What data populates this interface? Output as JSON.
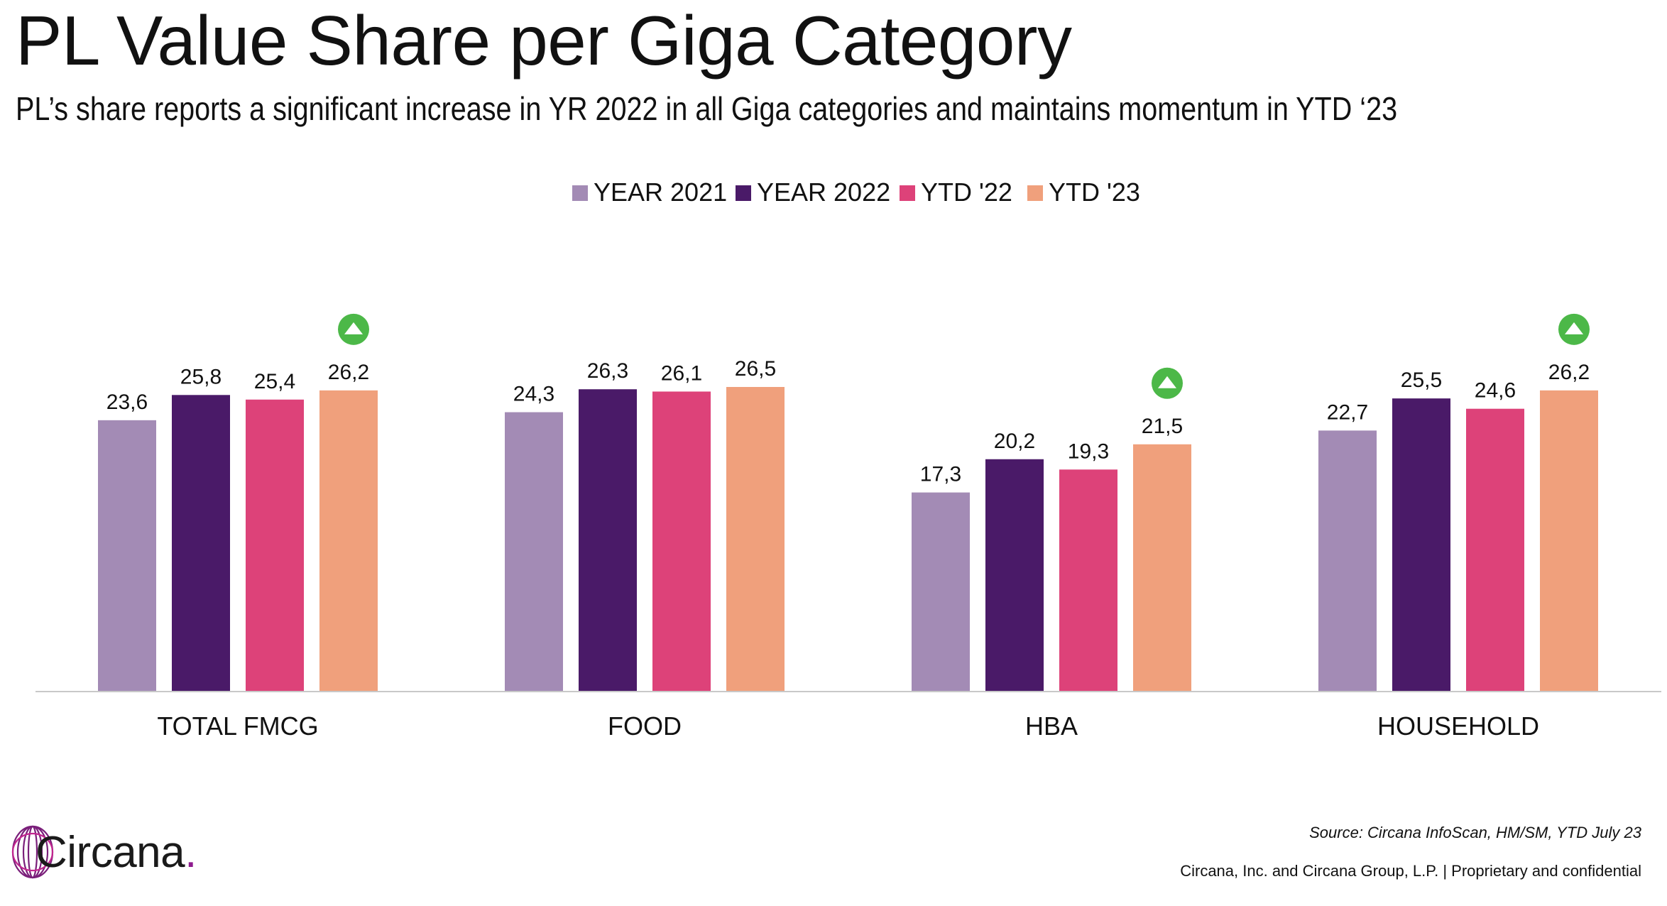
{
  "header": {
    "title": "PL Value Share per Giga Category",
    "subtitle": "PL’s share reports a significant increase in YR 2022 in all Giga categories and maintains momentum in YTD ‘23"
  },
  "chart_data": {
    "type": "bar",
    "categories": [
      "TOTAL FMCG",
      "FOOD",
      "HBA",
      "HOUSEHOLD"
    ],
    "series": [
      {
        "name": "YEAR 2021",
        "color": "#a38bb5",
        "values": [
          23.6,
          24.3,
          17.3,
          22.7
        ],
        "labels": [
          "23,6",
          "24,3",
          "17,3",
          "22,7"
        ]
      },
      {
        "name": "YEAR 2022",
        "color": "#4a1a68",
        "values": [
          25.8,
          26.3,
          20.2,
          25.5
        ],
        "labels": [
          "25,8",
          "26,3",
          "20,2",
          "25,5"
        ]
      },
      {
        "name": "YTD '22",
        "color": "#dd4279",
        "values": [
          25.4,
          26.1,
          19.3,
          24.6
        ],
        "labels": [
          "25,4",
          "26,1",
          "19,3",
          "24,6"
        ]
      },
      {
        "name": "YTD '23",
        "color": "#f0a07c",
        "values": [
          26.2,
          26.5,
          21.5,
          26.2
        ],
        "labels": [
          "26,2",
          "26,5",
          "21,5",
          "26,2"
        ]
      }
    ],
    "ylim": [
      0,
      26.5
    ],
    "legend_position": "top-center",
    "grid": false,
    "increase_markers": {
      "color": "#4cb848",
      "categories": [
        "TOTAL FMCG",
        "HBA",
        "HOUSEHOLD"
      ]
    }
  },
  "footer": {
    "logo_text": "Circana",
    "logo_dot": ".",
    "source": "Source: Circana InfoScan, HM/SM, YTD July 23",
    "legal": "Circana, Inc. and Circana Group, L.P. |  Proprietary and confidential"
  }
}
